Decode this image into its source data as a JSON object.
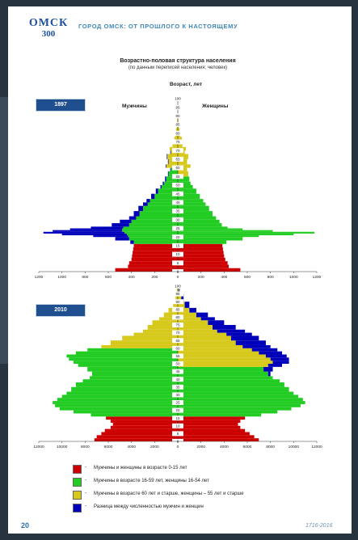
{
  "header": {
    "logo_text": "ОМСК",
    "logo_number": "300",
    "title": "ГОРОД ОМСК: ОТ ПРОШЛОГО К НАСТОЯЩЕМУ"
  },
  "chart_data": [
    {
      "type": "bar",
      "orientation": "horizontal",
      "title": "Возрастно-половая структура населения",
      "subtitle": "(по данным переписей населения; человек)",
      "year": "1897",
      "center_axis_label": "Возраст, лет",
      "left_label": "Мужчины",
      "right_label": "Женщины",
      "ages": [
        0,
        5,
        10,
        15,
        20,
        25,
        30,
        35,
        40,
        45,
        50,
        55,
        60,
        65,
        70,
        75,
        80,
        85,
        90,
        95,
        100
      ],
      "age_tick_labels": [
        "0",
        "5",
        "10",
        "15",
        "20",
        "25",
        "30",
        "35",
        "40",
        "45",
        "50",
        "55",
        "60",
        "65",
        "70",
        "75",
        "80",
        "85",
        "90",
        "95",
        "100"
      ],
      "value_tick_labels": [
        "1200",
        "1000",
        "800",
        "600",
        "400",
        "200",
        "0",
        "200",
        "400",
        "600",
        "800",
        "1000",
        "1200"
      ],
      "xlim": [
        0,
        1200
      ],
      "men": {
        "ages": [
          0,
          2,
          4,
          6,
          8,
          10,
          12,
          14,
          16,
          18,
          20,
          21,
          22,
          23,
          24,
          25,
          26,
          28,
          30,
          32,
          35,
          38,
          40,
          42,
          45,
          48,
          50,
          52,
          55,
          58,
          60,
          62,
          65,
          68,
          70,
          72,
          75,
          78,
          80,
          83,
          86,
          90,
          95,
          100
        ],
        "red": [
          540,
          430,
          420,
          400,
          395,
          390,
          385,
          380,
          0,
          0,
          0,
          0,
          0,
          0,
          0,
          0,
          0,
          0,
          0,
          0,
          0,
          0,
          0,
          0,
          0,
          0,
          0,
          0,
          0,
          0,
          0,
          0,
          0,
          0,
          0,
          0,
          0,
          0,
          0,
          0,
          0,
          0,
          0,
          0
        ],
        "green": [
          0,
          0,
          0,
          0,
          0,
          0,
          0,
          0,
          380,
          420,
          430,
          440,
          460,
          480,
          480,
          470,
          420,
          400,
          360,
          330,
          300,
          260,
          240,
          200,
          170,
          140,
          120,
          100,
          80,
          60,
          0,
          0,
          0,
          0,
          0,
          0,
          0,
          0,
          0,
          0,
          0,
          0,
          0,
          0
        ],
        "yellow": [
          0,
          0,
          0,
          0,
          0,
          0,
          0,
          0,
          0,
          0,
          0,
          0,
          0,
          0,
          0,
          0,
          0,
          0,
          0,
          0,
          0,
          0,
          0,
          0,
          0,
          0,
          0,
          0,
          0,
          0,
          100,
          80,
          90,
          60,
          70,
          45,
          30,
          20,
          15,
          8,
          5,
          0,
          0,
          0
        ],
        "blue": [
          0,
          0,
          0,
          0,
          0,
          0,
          0,
          0,
          30,
          120,
          300,
          560,
          700,
          600,
          450,
          280,
          150,
          100,
          60,
          50,
          40,
          40,
          30,
          30,
          20,
          10,
          10,
          10,
          5,
          5,
          5,
          5,
          5,
          5,
          0,
          0,
          0,
          0,
          0,
          0,
          0,
          0,
          0,
          0
        ]
      },
      "women": {
        "ages": [
          0,
          2,
          4,
          6,
          8,
          10,
          12,
          14,
          16,
          18,
          20,
          21,
          22,
          23,
          24,
          25,
          26,
          28,
          30,
          32,
          35,
          38,
          40,
          42,
          45,
          48,
          50,
          52,
          55,
          58,
          60,
          62,
          65,
          68,
          70,
          72,
          75,
          78,
          80,
          83,
          86,
          90,
          95,
          100
        ],
        "red": [
          540,
          440,
          430,
          410,
          400,
          395,
          390,
          385,
          0,
          0,
          0,
          0,
          0,
          0,
          0,
          0,
          0,
          0,
          0,
          0,
          0,
          0,
          0,
          0,
          0,
          0,
          0,
          0,
          0,
          0,
          0,
          0,
          0,
          0,
          0,
          0,
          0,
          0,
          0,
          0,
          0,
          0,
          0,
          0
        ],
        "green": [
          0,
          0,
          0,
          0,
          0,
          0,
          0,
          0,
          420,
          560,
          700,
          1000,
          1180,
          820,
          560,
          430,
          380,
          360,
          330,
          300,
          270,
          240,
          220,
          190,
          160,
          130,
          110,
          100,
          0,
          0,
          0,
          0,
          0,
          0,
          0,
          0,
          0,
          0,
          0,
          0,
          0,
          0,
          0,
          0
        ],
        "yellow": [
          0,
          0,
          0,
          0,
          0,
          0,
          0,
          0,
          0,
          0,
          0,
          0,
          0,
          0,
          0,
          0,
          0,
          0,
          0,
          0,
          0,
          0,
          0,
          0,
          0,
          0,
          0,
          0,
          90,
          80,
          110,
          80,
          90,
          60,
          70,
          40,
          35,
          20,
          15,
          8,
          5,
          0,
          0,
          0
        ],
        "blue": [
          0,
          0,
          0,
          0,
          0,
          0,
          0,
          0,
          0,
          0,
          0,
          0,
          0,
          0,
          0,
          0,
          0,
          0,
          0,
          0,
          0,
          0,
          0,
          0,
          0,
          0,
          0,
          0,
          0,
          0,
          0,
          0,
          0,
          0,
          0,
          0,
          0,
          0,
          0,
          0,
          0,
          0,
          0,
          0
        ]
      }
    },
    {
      "type": "bar",
      "orientation": "horizontal",
      "year": "2010",
      "ages": [
        0,
        5,
        10,
        15,
        20,
        25,
        30,
        35,
        40,
        45,
        50,
        55,
        60,
        65,
        70,
        75,
        80,
        85,
        90,
        95,
        100
      ],
      "age_tick_labels": [
        "0",
        "5",
        "10",
        "15",
        "20",
        "25",
        "30",
        "35",
        "40",
        "45",
        "50",
        "55",
        "60",
        "65",
        "70",
        "75",
        "80",
        "85",
        "90",
        "95",
        "100"
      ],
      "value_tick_labels": [
        "12000",
        "10000",
        "8000",
        "6000",
        "4000",
        "2000",
        "0",
        "2000",
        "4000",
        "6000",
        "8000",
        "10000",
        "12000"
      ],
      "xlim": [
        0,
        12000
      ],
      "men": {
        "ages": [
          0,
          2,
          4,
          6,
          8,
          10,
          12,
          14,
          16,
          18,
          20,
          22,
          24,
          26,
          28,
          30,
          32,
          35,
          38,
          40,
          42,
          45,
          48,
          50,
          52,
          54,
          56,
          58,
          60,
          62,
          65,
          68,
          70,
          72,
          75,
          78,
          80,
          83,
          86,
          90,
          95,
          100
        ],
        "red": [
          7200,
          7000,
          6600,
          6300,
          5800,
          5600,
          5800,
          6200,
          0,
          0,
          0,
          0,
          0,
          0,
          0,
          0,
          0,
          0,
          0,
          0,
          0,
          0,
          0,
          0,
          0,
          0,
          0,
          0,
          0,
          0,
          0,
          0,
          0,
          0,
          0,
          0,
          0,
          0,
          0,
          0,
          0,
          0
        ],
        "green": [
          0,
          0,
          0,
          0,
          0,
          0,
          0,
          0,
          7500,
          9000,
          10200,
          10600,
          10800,
          10400,
          10000,
          9600,
          9200,
          8800,
          8200,
          7600,
          7400,
          7800,
          8600,
          9000,
          9400,
          9600,
          8800,
          7800,
          0,
          0,
          0,
          0,
          0,
          0,
          0,
          0,
          0,
          0,
          0,
          0,
          0,
          0
        ],
        "yellow": [
          0,
          0,
          0,
          0,
          0,
          0,
          0,
          0,
          0,
          0,
          0,
          0,
          0,
          0,
          0,
          0,
          0,
          0,
          0,
          0,
          0,
          0,
          0,
          0,
          0,
          0,
          0,
          0,
          6600,
          5800,
          4800,
          3800,
          3000,
          2600,
          2200,
          1600,
          1200,
          800,
          400,
          200,
          60,
          0
        ],
        "blue": [
          0,
          0,
          0,
          0,
          0,
          0,
          0,
          0,
          0,
          0,
          0,
          0,
          0,
          0,
          0,
          0,
          0,
          0,
          0,
          0,
          0,
          0,
          0,
          0,
          0,
          0,
          0,
          0,
          0,
          0,
          0,
          0,
          0,
          0,
          0,
          0,
          0,
          0,
          0,
          0,
          0,
          0
        ]
      },
      "women": {
        "ages": [
          0,
          2,
          4,
          6,
          8,
          10,
          12,
          14,
          16,
          18,
          20,
          22,
          24,
          26,
          28,
          30,
          32,
          35,
          38,
          40,
          42,
          45,
          48,
          50,
          52,
          54,
          56,
          58,
          60,
          62,
          65,
          68,
          70,
          72,
          75,
          78,
          80,
          83,
          86,
          90,
          95,
          100
        ],
        "red": [
          7000,
          6600,
          6200,
          5800,
          5400,
          5200,
          5400,
          5800,
          0,
          0,
          0,
          0,
          0,
          0,
          0,
          0,
          0,
          0,
          0,
          0,
          0,
          0,
          0,
          0,
          0,
          0,
          0,
          0,
          0,
          0,
          0,
          0,
          0,
          0,
          0,
          0,
          0,
          0,
          0,
          0,
          0,
          0
        ],
        "green": [
          0,
          0,
          0,
          0,
          0,
          0,
          0,
          0,
          7200,
          8600,
          9800,
          10600,
          11000,
          10800,
          10400,
          10000,
          9600,
          9200,
          8800,
          8200,
          7800,
          7400,
          0,
          0,
          0,
          0,
          0,
          0,
          0,
          0,
          0,
          0,
          0,
          0,
          0,
          0,
          0,
          0,
          0,
          0,
          0,
          0,
          0,
          0
        ],
        "yellow": [
          0,
          0,
          0,
          0,
          0,
          0,
          0,
          0,
          0,
          0,
          0,
          0,
          0,
          0,
          0,
          0,
          0,
          0,
          0,
          0,
          0,
          0,
          7800,
          8200,
          8000,
          7600,
          7000,
          6400,
          5600,
          5000,
          4600,
          4200,
          3400,
          3000,
          2600,
          2000,
          1600,
          1000,
          600,
          300,
          100,
          0
        ],
        "blue": [
          0,
          0,
          0,
          0,
          0,
          0,
          0,
          0,
          0,
          0,
          0,
          0,
          0,
          0,
          0,
          0,
          0,
          0,
          0,
          0,
          200,
          800,
          1200,
          1400,
          1600,
          1800,
          2000,
          2200,
          2400,
          2600,
          2400,
          2200,
          2400,
          2000,
          1400,
          1200,
          1000,
          600,
          400,
          200,
          60,
          0
        ]
      }
    }
  ],
  "colors": {
    "red": "#cc0000",
    "green": "#22cc22",
    "yellow": "#d7c81c",
    "blue": "#0000bb"
  },
  "legend": [
    {
      "color": "#cc0000",
      "dash": "-",
      "text": "Мужчины и женщины в возрасте 0-15 лет"
    },
    {
      "color": "#22cc22",
      "dash": "-",
      "text": "Мужчины в возрасте 16-59 лет, женщины 16-54 лет"
    },
    {
      "color": "#d7c81c",
      "dash": "-",
      "text": "Мужчины в возрасте 60 лет и старше, женщины – 55 лет и старше"
    },
    {
      "color": "#0000bb",
      "dash": "-",
      "text": "Разница между численностью мужчин и женщин"
    }
  ],
  "footer": {
    "page_number": "20",
    "years": "1716-2016"
  }
}
